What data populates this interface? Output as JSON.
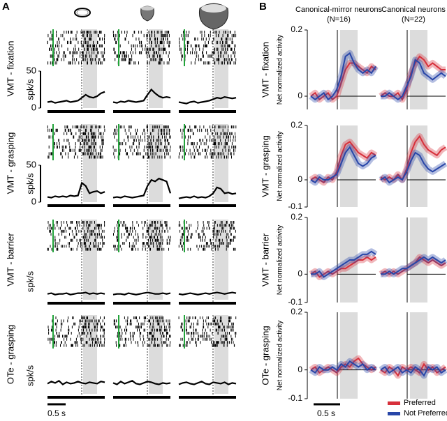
{
  "figure": {
    "panel_labels": [
      "A",
      "B"
    ],
    "scale_bars": [
      "0.5 s",
      "0.5 s"
    ],
    "row_labels_a": [
      "VMT - fixation",
      "VMT - grasping",
      "VMT - barrier",
      "OTe - grasping"
    ],
    "row_labels_b": [
      "VMT - fixation",
      "VMT - grasping",
      "VMT - barrier",
      "OTe - grasping"
    ],
    "column_titles_b": [
      [
        "Canonical-mirror neurons",
        "(N=16)"
      ],
      [
        "Canonical neurons",
        "(N=22)"
      ]
    ]
  },
  "chart_data": [
    {
      "type": "line",
      "ylabel": "spk/s",
      "ylim": [
        0,
        50
      ],
      "yticks": [
        0,
        50
      ],
      "color": "#000000",
      "values": [
        8,
        9,
        7,
        8,
        9,
        10,
        8,
        9,
        10,
        14,
        18,
        15,
        14,
        16,
        20,
        22
      ]
    },
    {
      "type": "line",
      "ylim": [
        0,
        50
      ],
      "color": "#000000",
      "values": [
        8,
        7,
        9,
        8,
        10,
        9,
        8,
        9,
        10,
        18,
        25,
        20,
        16,
        14,
        15,
        14
      ]
    },
    {
      "type": "line",
      "ylim": [
        0,
        50
      ],
      "color": "#000000",
      "values": [
        8,
        7,
        6,
        8,
        9,
        7,
        8,
        9,
        10,
        12,
        14,
        13,
        15,
        14,
        13,
        14
      ]
    },
    {
      "type": "line",
      "ylabel": "spk/s",
      "ylim": [
        0,
        50
      ],
      "yticks": [
        0,
        50
      ],
      "color": "#000000",
      "values": [
        7,
        6,
        8,
        7,
        8,
        7,
        9,
        8,
        9,
        26,
        22,
        12,
        14,
        15,
        12,
        14
      ]
    },
    {
      "type": "line",
      "ylim": [
        0,
        50
      ],
      "color": "#000000",
      "values": [
        6,
        7,
        6,
        8,
        7,
        6,
        7,
        8,
        9,
        22,
        30,
        28,
        32,
        30,
        28,
        12
      ]
    },
    {
      "type": "line",
      "ylim": [
        0,
        50
      ],
      "color": "#000000",
      "values": [
        5,
        6,
        7,
        6,
        8,
        6,
        7,
        6,
        8,
        12,
        20,
        18,
        12,
        13,
        11,
        12
      ]
    },
    {
      "type": "line",
      "ylabel": "spk/s",
      "ylim": [
        0,
        50
      ],
      "color": "#000000",
      "values": [
        8,
        9,
        7,
        8,
        8,
        9,
        7,
        8,
        9,
        9,
        10,
        8,
        9,
        8,
        9,
        8
      ]
    },
    {
      "type": "line",
      "ylim": [
        0,
        50
      ],
      "color": "#000000",
      "values": [
        7,
        8,
        8,
        7,
        9,
        8,
        7,
        8,
        9,
        10,
        9,
        8,
        8,
        9,
        8,
        9
      ]
    },
    {
      "type": "line",
      "ylim": [
        0,
        50
      ],
      "color": "#000000",
      "values": [
        8,
        7,
        8,
        9,
        8,
        7,
        8,
        9,
        8,
        9,
        10,
        9,
        8,
        9,
        10,
        9
      ]
    },
    {
      "type": "line",
      "ylabel": "spk/s",
      "ylim": [
        0,
        50
      ],
      "color": "#000000",
      "values": [
        14,
        17,
        15,
        18,
        13,
        16,
        14,
        15,
        17,
        15,
        14,
        16,
        15,
        14,
        17,
        16
      ]
    },
    {
      "type": "line",
      "ylim": [
        0,
        50
      ],
      "color": "#000000",
      "values": [
        15,
        13,
        17,
        14,
        16,
        18,
        14,
        13,
        15,
        17,
        16,
        14,
        13,
        15,
        14,
        15
      ]
    },
    {
      "type": "line",
      "ylim": [
        0,
        50
      ],
      "color": "#000000",
      "values": [
        13,
        15,
        16,
        14,
        13,
        15,
        17,
        14,
        13,
        16,
        15,
        14,
        16,
        13,
        15,
        14
      ]
    },
    {
      "type": "line",
      "ylabel": "Net normalized activity",
      "ylim": [
        -0.04,
        0.2
      ],
      "yticks": [
        0,
        0.2
      ],
      "series": [
        {
          "name": "Preferred",
          "color": "#d7303b",
          "values": [
            0,
            0.01,
            -0.01,
            0,
            0.01,
            -0.01,
            0,
            0.04,
            0.08,
            0.1,
            0.1,
            0.09,
            0.08,
            0.07,
            0.09,
            0.08
          ]
        },
        {
          "name": "Not Preferred",
          "color": "#2846a8",
          "values": [
            0,
            -0.01,
            0,
            0.01,
            -0.01,
            0,
            0.02,
            0.06,
            0.12,
            0.13,
            0.1,
            0.08,
            0.07,
            0.08,
            0.07,
            0.09
          ]
        }
      ]
    },
    {
      "type": "line",
      "ylim": [
        -0.04,
        0.2
      ],
      "series": [
        {
          "name": "Preferred",
          "color": "#d7303b",
          "values": [
            0,
            0.01,
            0,
            0,
            0.01,
            -0.01,
            0.02,
            0.07,
            0.1,
            0.12,
            0.11,
            0.09,
            0.1,
            0.09,
            0.08,
            0.08
          ]
        },
        {
          "name": "Not Preferred",
          "color": "#2846a8",
          "values": [
            0,
            0,
            0.01,
            0,
            -0.01,
            0,
            0.03,
            0.06,
            0.11,
            0.1,
            0.07,
            0.06,
            0.05,
            0.06,
            0.07,
            0.06
          ]
        }
      ]
    },
    {
      "type": "line",
      "ylabel": "Net normalized activity",
      "ylim": [
        -0.1,
        0.2
      ],
      "yticks": [
        -0.1,
        0,
        0.2
      ],
      "series": [
        {
          "name": "Preferred",
          "color": "#d7303b",
          "values": [
            0,
            0.01,
            0,
            -0.01,
            0.01,
            0,
            0.03,
            0.09,
            0.13,
            0.14,
            0.12,
            0.1,
            0.09,
            0.08,
            0.1,
            0.09
          ]
        },
        {
          "name": "Not Preferred",
          "color": "#2846a8",
          "values": [
            0,
            -0.01,
            0.01,
            0,
            0,
            0.01,
            0.02,
            0.06,
            0.1,
            0.12,
            0.09,
            0.06,
            0.05,
            0.06,
            0.08,
            0.09
          ]
        }
      ]
    },
    {
      "type": "line",
      "ylim": [
        -0.1,
        0.2
      ],
      "series": [
        {
          "name": "Preferred",
          "color": "#d7303b",
          "values": [
            0.01,
            0,
            0.01,
            0,
            0.02,
            0,
            0.04,
            0.1,
            0.14,
            0.16,
            0.13,
            0.11,
            0.1,
            0.09,
            0.11,
            0.12
          ]
        },
        {
          "name": "Not Preferred",
          "color": "#2846a8",
          "values": [
            0,
            0.01,
            -0.01,
            0,
            0.01,
            0,
            0.03,
            0.07,
            0.1,
            0.09,
            0.06,
            0.04,
            0.03,
            0.04,
            0.05,
            0.06
          ]
        }
      ]
    },
    {
      "type": "line",
      "ylabel": "Net normalized activity",
      "ylim": [
        -0.1,
        0.2
      ],
      "yticks": [
        -0.1,
        0,
        0.2
      ],
      "series": [
        {
          "name": "Preferred",
          "color": "#d7303b",
          "values": [
            0,
            0.01,
            -0.01,
            0,
            0.01,
            0,
            0.01,
            0.02,
            0.02,
            0.03,
            0.04,
            0.05,
            0.05,
            0.06,
            0.05,
            0.06
          ]
        },
        {
          "name": "Not Preferred",
          "color": "#2846a8",
          "values": [
            0,
            0,
            0.01,
            -0.01,
            0,
            0.01,
            0.02,
            0.03,
            0.04,
            0.05,
            0.05,
            0.06,
            0.07,
            0.07,
            0.08,
            0.07
          ]
        }
      ]
    },
    {
      "type": "line",
      "ylim": [
        -0.1,
        0.2
      ],
      "series": [
        {
          "name": "Preferred",
          "color": "#d7303b",
          "values": [
            0,
            0.01,
            0,
            0.01,
            0,
            0.01,
            0.02,
            0.03,
            0.04,
            0.06,
            0.05,
            0.04,
            0.05,
            0.04,
            0.03,
            0.04
          ]
        },
        {
          "name": "Not Preferred",
          "color": "#2846a8",
          "values": [
            0,
            0,
            0.01,
            0,
            0.01,
            0.02,
            0.02,
            0.03,
            0.04,
            0.05,
            0.06,
            0.05,
            0.06,
            0.05,
            0.04,
            0.05
          ]
        }
      ]
    },
    {
      "type": "line",
      "ylabel": "Net normalized activity",
      "ylim": [
        -0.1,
        0.2
      ],
      "yticks": [
        -0.1,
        0,
        0.2
      ],
      "series": [
        {
          "name": "Preferred",
          "color": "#d7303b",
          "values": [
            0,
            0.01,
            -0.01,
            0,
            0.01,
            0,
            -0.01,
            0.01,
            0.02,
            0.01,
            0.03,
            0.04,
            0.02,
            0.01,
            0,
            0.01
          ]
        },
        {
          "name": "Not Preferred",
          "color": "#2846a8",
          "values": [
            0,
            -0.01,
            0.01,
            0,
            0,
            0.01,
            0,
            0.02,
            0.01,
            0.03,
            0.02,
            0.01,
            0.02,
            0,
            0.01,
            0
          ]
        }
      ]
    },
    {
      "type": "line",
      "ylim": [
        -0.1,
        0.2
      ],
      "series": [
        {
          "name": "Preferred",
          "color": "#d7303b",
          "values": [
            0,
            -0.01,
            0.01,
            0,
            -0.02,
            0.01,
            0,
            0.01,
            0,
            -0.01,
            0.02,
            0,
            0.01,
            -0.01,
            0,
            0.01
          ]
        },
        {
          "name": "Not Preferred",
          "color": "#2846a8",
          "values": [
            0,
            0.01,
            -0.01,
            0,
            0.01,
            -0.01,
            0,
            -0.01,
            0.01,
            0,
            -0.02,
            0.01,
            0,
            0.01,
            -0.01,
            0
          ]
        }
      ]
    }
  ]
}
